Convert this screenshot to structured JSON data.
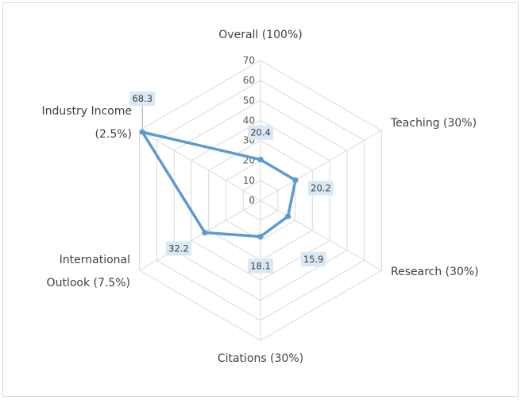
{
  "chart_data": {
    "type": "radar",
    "categories": [
      [
        "Overall (100%)"
      ],
      [
        "Teaching (30%)"
      ],
      [
        "Research  (30%)"
      ],
      [
        "Citations (30%)"
      ],
      [
        "International",
        "Outlook (7.5%)"
      ],
      [
        "Industry Income",
        "(2.5%)"
      ]
    ],
    "series": [
      {
        "values": [
          20.4,
          20.2,
          15.9,
          18.1,
          32.2,
          68.3
        ]
      }
    ],
    "data_labels": [
      "20.4",
      "20.2",
      "15.9",
      "18.1",
      "32.2",
      "68.3"
    ],
    "ticks": [
      "0",
      "10",
      "20",
      "30",
      "40",
      "50",
      "60",
      "70"
    ],
    "rlim": [
      0,
      70
    ],
    "grid": true,
    "legend": "none",
    "line_color": "#5b9bd5",
    "grid_color": "#d9d9d9",
    "label_bg": "#dae8f5"
  }
}
